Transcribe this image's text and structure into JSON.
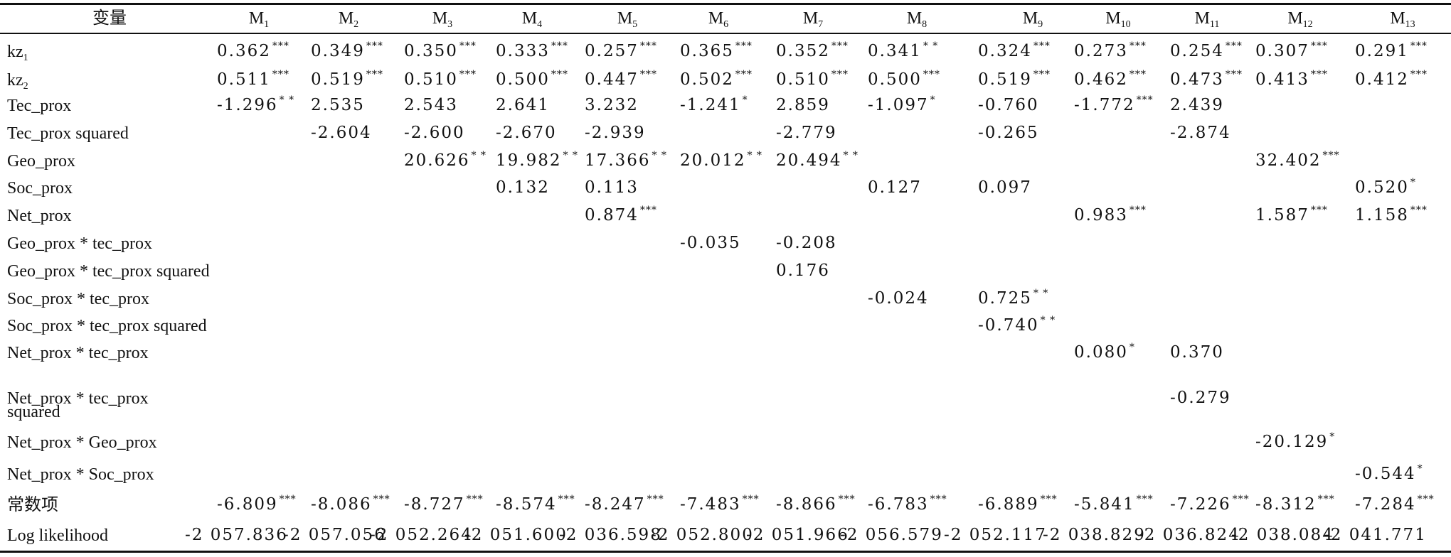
{
  "header": {
    "variable_label": "变量",
    "models": [
      {
        "base": "M",
        "sub": "1"
      },
      {
        "base": "M",
        "sub": "2"
      },
      {
        "base": "M",
        "sub": "3"
      },
      {
        "base": "M",
        "sub": "4"
      },
      {
        "base": "M",
        "sub": "5"
      },
      {
        "base": "M",
        "sub": "6"
      },
      {
        "base": "M",
        "sub": "7"
      },
      {
        "base": "M",
        "sub": "8"
      },
      {
        "base": "M",
        "sub": "9"
      },
      {
        "base": "M",
        "sub": "10"
      },
      {
        "base": "M",
        "sub": "11"
      },
      {
        "base": "M",
        "sub": "12"
      },
      {
        "base": "M",
        "sub": "13"
      }
    ]
  },
  "rows": [
    {
      "label": "kz",
      "label_sub": "1",
      "cells": [
        {
          "col": 0,
          "v": "0.362",
          "s": "***"
        },
        {
          "col": 1,
          "v": "0.349",
          "s": "***"
        },
        {
          "col": 2,
          "v": "0.350",
          "s": "***"
        },
        {
          "col": 3,
          "v": "0.333",
          "s": "***"
        },
        {
          "col": 4,
          "v": "0.257",
          "s": "***"
        },
        {
          "col": 5,
          "v": "0.365",
          "s": "***"
        },
        {
          "col": 6,
          "v": "0.352",
          "s": "***"
        },
        {
          "col": 7,
          "v": "0.341",
          "s": "* *"
        },
        {
          "col": 8,
          "v": "0.324",
          "s": "***"
        },
        {
          "col": 9,
          "v": "0.273",
          "s": "***"
        },
        {
          "col": 10,
          "v": "0.254",
          "s": "***"
        },
        {
          "col": 11,
          "v": "0.307",
          "s": "***"
        },
        {
          "col": 12,
          "v": "0.291",
          "s": "***"
        }
      ]
    },
    {
      "label": "kz",
      "label_sub": "2",
      "cells": [
        {
          "col": 0,
          "v": "0.511",
          "s": "***"
        },
        {
          "col": 1,
          "v": "0.519",
          "s": "***"
        },
        {
          "col": 2,
          "v": "0.510",
          "s": "***"
        },
        {
          "col": 3,
          "v": "0.500",
          "s": "***"
        },
        {
          "col": 4,
          "v": "0.447",
          "s": "***"
        },
        {
          "col": 5,
          "v": "0.502",
          "s": "***"
        },
        {
          "col": 6,
          "v": "0.510",
          "s": "***"
        },
        {
          "col": 7,
          "v": "0.500",
          "s": "***"
        },
        {
          "col": 8,
          "v": "0.519",
          "s": "***"
        },
        {
          "col": 9,
          "v": "0.462",
          "s": "***"
        },
        {
          "col": 10,
          "v": "0.473",
          "s": "***"
        },
        {
          "col": 11,
          "v": "0.413",
          "s": "***"
        },
        {
          "col": 12,
          "v": "0.412",
          "s": "***"
        }
      ]
    },
    {
      "label": "Tec_prox",
      "cells": [
        {
          "col": 0,
          "v": "-1.296",
          "s": "* *"
        },
        {
          "col": 1,
          "v": "2.535",
          "s": ""
        },
        {
          "col": 2,
          "v": "2.543",
          "s": ""
        },
        {
          "col": 3,
          "v": "2.641",
          "s": ""
        },
        {
          "col": 4,
          "v": "3.232",
          "s": ""
        },
        {
          "col": 5,
          "v": "-1.241",
          "s": "*"
        },
        {
          "col": 6,
          "v": "2.859",
          "s": ""
        },
        {
          "col": 7,
          "v": "-1.097",
          "s": "*"
        },
        {
          "col": 8,
          "v": "-0.760",
          "s": ""
        },
        {
          "col": 9,
          "v": "-1.772",
          "s": "***"
        },
        {
          "col": 10,
          "v": "2.439",
          "s": ""
        }
      ]
    },
    {
      "label": "Tec_prox squared",
      "cells": [
        {
          "col": 1,
          "v": "-2.604",
          "s": ""
        },
        {
          "col": 2,
          "v": "-2.600",
          "s": ""
        },
        {
          "col": 3,
          "v": "-2.670",
          "s": ""
        },
        {
          "col": 4,
          "v": "-2.939",
          "s": ""
        },
        {
          "col": 6,
          "v": "-2.779",
          "s": ""
        },
        {
          "col": 8,
          "v": "-0.265",
          "s": ""
        },
        {
          "col": 10,
          "v": "-2.874",
          "s": ""
        }
      ]
    },
    {
      "label": "Geo_prox",
      "cells": [
        {
          "col": 2,
          "v": "20.626",
          "s": "* *"
        },
        {
          "col": 3,
          "v": "19.982",
          "s": "* *"
        },
        {
          "col": 4,
          "v": "17.366",
          "s": "* *"
        },
        {
          "col": 5,
          "v": "20.012",
          "s": "* *"
        },
        {
          "col": 6,
          "v": "20.494",
          "s": "* *"
        },
        {
          "col": 11,
          "v": "32.402",
          "s": "***"
        }
      ]
    },
    {
      "label": "Soc_prox",
      "cells": [
        {
          "col": 3,
          "v": "0.132",
          "s": ""
        },
        {
          "col": 4,
          "v": "0.113",
          "s": ""
        },
        {
          "col": 7,
          "v": "0.127",
          "s": ""
        },
        {
          "col": 8,
          "v": "0.097",
          "s": ""
        },
        {
          "col": 12,
          "v": "0.520",
          "s": "*"
        }
      ]
    },
    {
      "label": "Net_prox",
      "cells": [
        {
          "col": 4,
          "v": "0.874",
          "s": "***"
        },
        {
          "col": 9,
          "v": "0.983",
          "s": "***"
        },
        {
          "col": 11,
          "v": "1.587",
          "s": "***"
        },
        {
          "col": 12,
          "v": "1.158",
          "s": "***"
        }
      ]
    },
    {
      "label": "Geo_prox * tec_prox",
      "cells": [
        {
          "col": 5,
          "v": "-0.035",
          "s": ""
        },
        {
          "col": 6,
          "v": "-0.208",
          "s": ""
        }
      ]
    },
    {
      "label": "Geo_prox * tec_prox squared",
      "cells": [
        {
          "col": 6,
          "v": "0.176",
          "s": ""
        }
      ]
    },
    {
      "label": "Soc_prox * tec_prox",
      "cells": [
        {
          "col": 7,
          "v": "-0.024",
          "s": ""
        },
        {
          "col": 8,
          "v": "0.725",
          "s": "* *"
        }
      ]
    },
    {
      "label": "Soc_prox * tec_prox squared",
      "cells": [
        {
          "col": 8,
          "v": "-0.740",
          "s": "* *"
        }
      ]
    },
    {
      "label": "Net_prox * tec_prox",
      "cells": [
        {
          "col": 9,
          "v": "0.080",
          "s": "*"
        },
        {
          "col": 10,
          "v": "0.370",
          "s": ""
        }
      ]
    },
    {
      "label": "Net_prox * tec_prox",
      "label2": "squared",
      "cells": [
        {
          "col": 10,
          "v": "-0.279",
          "s": ""
        }
      ]
    },
    {
      "label": "Net_prox * Geo_prox",
      "cells": [
        {
          "col": 11,
          "v": "-20.129",
          "s": "*"
        }
      ]
    },
    {
      "label": "Net_prox * Soc_prox",
      "cells": [
        {
          "col": 12,
          "v": "-0.544",
          "s": "*"
        }
      ]
    },
    {
      "label": "常数项",
      "cells": [
        {
          "col": 0,
          "v": "-6.809",
          "s": "***"
        },
        {
          "col": 1,
          "v": "-8.086",
          "s": "***"
        },
        {
          "col": 2,
          "v": "-8.727",
          "s": "***"
        },
        {
          "col": 3,
          "v": "-8.574",
          "s": "***"
        },
        {
          "col": 4,
          "v": "-8.247",
          "s": "***"
        },
        {
          "col": 5,
          "v": "-7.483",
          "s": "***"
        },
        {
          "col": 6,
          "v": "-8.866",
          "s": "***"
        },
        {
          "col": 7,
          "v": "-6.783",
          "s": "***"
        },
        {
          "col": 8,
          "v": "-6.889",
          "s": "***"
        },
        {
          "col": 9,
          "v": "-5.841",
          "s": "***"
        },
        {
          "col": 10,
          "v": "-7.226",
          "s": "***"
        },
        {
          "col": 11,
          "v": "-8.312",
          "s": "***"
        },
        {
          "col": 12,
          "v": "-7.284",
          "s": "***"
        }
      ]
    },
    {
      "label": "Log likelihood",
      "cells": [
        {
          "col": 0,
          "v": "-2 057.836",
          "s": ""
        },
        {
          "col": 1,
          "v": "-2 057.056",
          "s": ""
        },
        {
          "col": 2,
          "v": "-2 052.264",
          "s": ""
        },
        {
          "col": 3,
          "v": "-2 051.600",
          "s": ""
        },
        {
          "col": 4,
          "v": "-2 036.598",
          "s": ""
        },
        {
          "col": 5,
          "v": "-2 052.800",
          "s": ""
        },
        {
          "col": 6,
          "v": "-2 051.966",
          "s": ""
        },
        {
          "col": 7,
          "v": "-2 056.579",
          "s": ""
        },
        {
          "col": 8,
          "v": "-2 052.117",
          "s": ""
        },
        {
          "col": 9,
          "v": "-2 038.829",
          "s": ""
        },
        {
          "col": 10,
          "v": "-2 036.824",
          "s": ""
        },
        {
          "col": 11,
          "v": "-2 038.084",
          "s": ""
        },
        {
          "col": 12,
          "v": "-2 041.771",
          "s": ""
        }
      ]
    }
  ]
}
